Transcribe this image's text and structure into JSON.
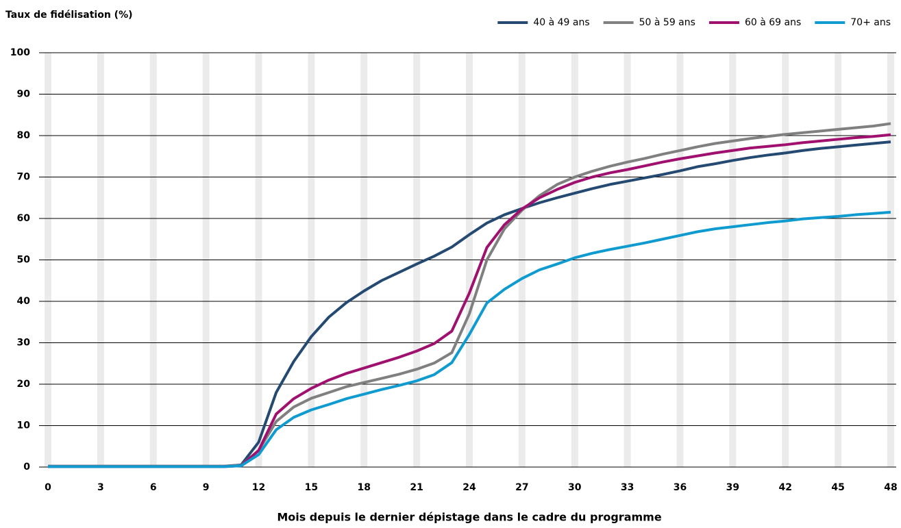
{
  "chart_data": {
    "type": "line",
    "title": "Taux de fidélisation (%)",
    "x_label": "Mois depuis le dernier dépistage dans le cadre du programme",
    "x": [
      0,
      1,
      2,
      3,
      4,
      5,
      6,
      7,
      8,
      9,
      10,
      11,
      12,
      13,
      14,
      15,
      16,
      17,
      18,
      19,
      20,
      21,
      22,
      23,
      24,
      25,
      26,
      27,
      28,
      29,
      30,
      31,
      32,
      33,
      34,
      35,
      36,
      37,
      38,
      39,
      40,
      41,
      42,
      43,
      44,
      45,
      46,
      47,
      48
    ],
    "xlim": [
      0,
      48
    ],
    "xticks": [
      0,
      3,
      6,
      9,
      12,
      15,
      18,
      21,
      24,
      27,
      30,
      33,
      36,
      39,
      42,
      45,
      48
    ],
    "ylim": [
      0,
      100
    ],
    "yticks": [
      0,
      10,
      20,
      30,
      40,
      50,
      60,
      70,
      80,
      90,
      100
    ],
    "grid": true,
    "legend": "top-right",
    "series": [
      {
        "name": "40 à 49 ans",
        "color": "#244a72",
        "values": [
          0.2,
          0.2,
          0.2,
          0.2,
          0.2,
          0.2,
          0.2,
          0.2,
          0.2,
          0.2,
          0.2,
          0.5,
          6,
          18,
          25.5,
          31.5,
          36.2,
          39.7,
          42.5,
          45,
          47,
          49,
          50.9,
          53.1,
          56.1,
          58.9,
          60.9,
          62.4,
          63.8,
          65,
          66.1,
          67.2,
          68.2,
          69,
          69.8,
          70.6,
          71.5,
          72.5,
          73.2,
          74,
          74.7,
          75.3,
          75.8,
          76.4,
          76.9,
          77.3,
          77.7,
          78.1,
          78.5
        ]
      },
      {
        "name": "50 à 59 ans",
        "color": "#808080",
        "values": [
          0.2,
          0.2,
          0.2,
          0.2,
          0.2,
          0.2,
          0.2,
          0.2,
          0.2,
          0.2,
          0.2,
          0.4,
          4,
          11,
          14.5,
          16.6,
          18,
          19.4,
          20.4,
          21.4,
          22.4,
          23.6,
          25.1,
          27.6,
          37,
          50,
          57.5,
          62,
          65.5,
          68.2,
          70,
          71.4,
          72.6,
          73.6,
          74.5,
          75.5,
          76.4,
          77.3,
          78.1,
          78.7,
          79.3,
          79.8,
          80.3,
          80.7,
          81.1,
          81.5,
          81.9,
          82.3,
          82.9
        ]
      },
      {
        "name": "60 à 69 ans",
        "color": "#a0106e",
        "values": [
          0.1,
          0.1,
          0.1,
          0.1,
          0.1,
          0.1,
          0.1,
          0.1,
          0.1,
          0.1,
          0.1,
          0.3,
          4,
          12.8,
          16.5,
          19,
          21,
          22.6,
          23.9,
          25.2,
          26.5,
          28,
          29.8,
          32.8,
          42,
          53,
          58.5,
          62.3,
          65,
          67,
          68.7,
          70,
          71,
          71.8,
          72.7,
          73.6,
          74.4,
          75.1,
          75.8,
          76.4,
          77,
          77.4,
          77.8,
          78.3,
          78.7,
          79.1,
          79.5,
          79.8,
          80.2
        ]
      },
      {
        "name": "70+ ans",
        "color": "#0f9bcf",
        "values": [
          0.1,
          0.1,
          0.1,
          0.1,
          0.1,
          0.1,
          0.1,
          0.1,
          0.1,
          0.1,
          0.1,
          0.3,
          3,
          9,
          12,
          13.8,
          15.1,
          16.5,
          17.6,
          18.7,
          19.7,
          20.8,
          22.3,
          25.2,
          32,
          39.6,
          42.9,
          45.5,
          47.6,
          49,
          50.5,
          51.6,
          52.5,
          53.3,
          54.1,
          55,
          55.9,
          56.8,
          57.5,
          58,
          58.5,
          59,
          59.4,
          59.9,
          60.2,
          60.5,
          60.9,
          61.2,
          61.5
        ]
      }
    ]
  }
}
